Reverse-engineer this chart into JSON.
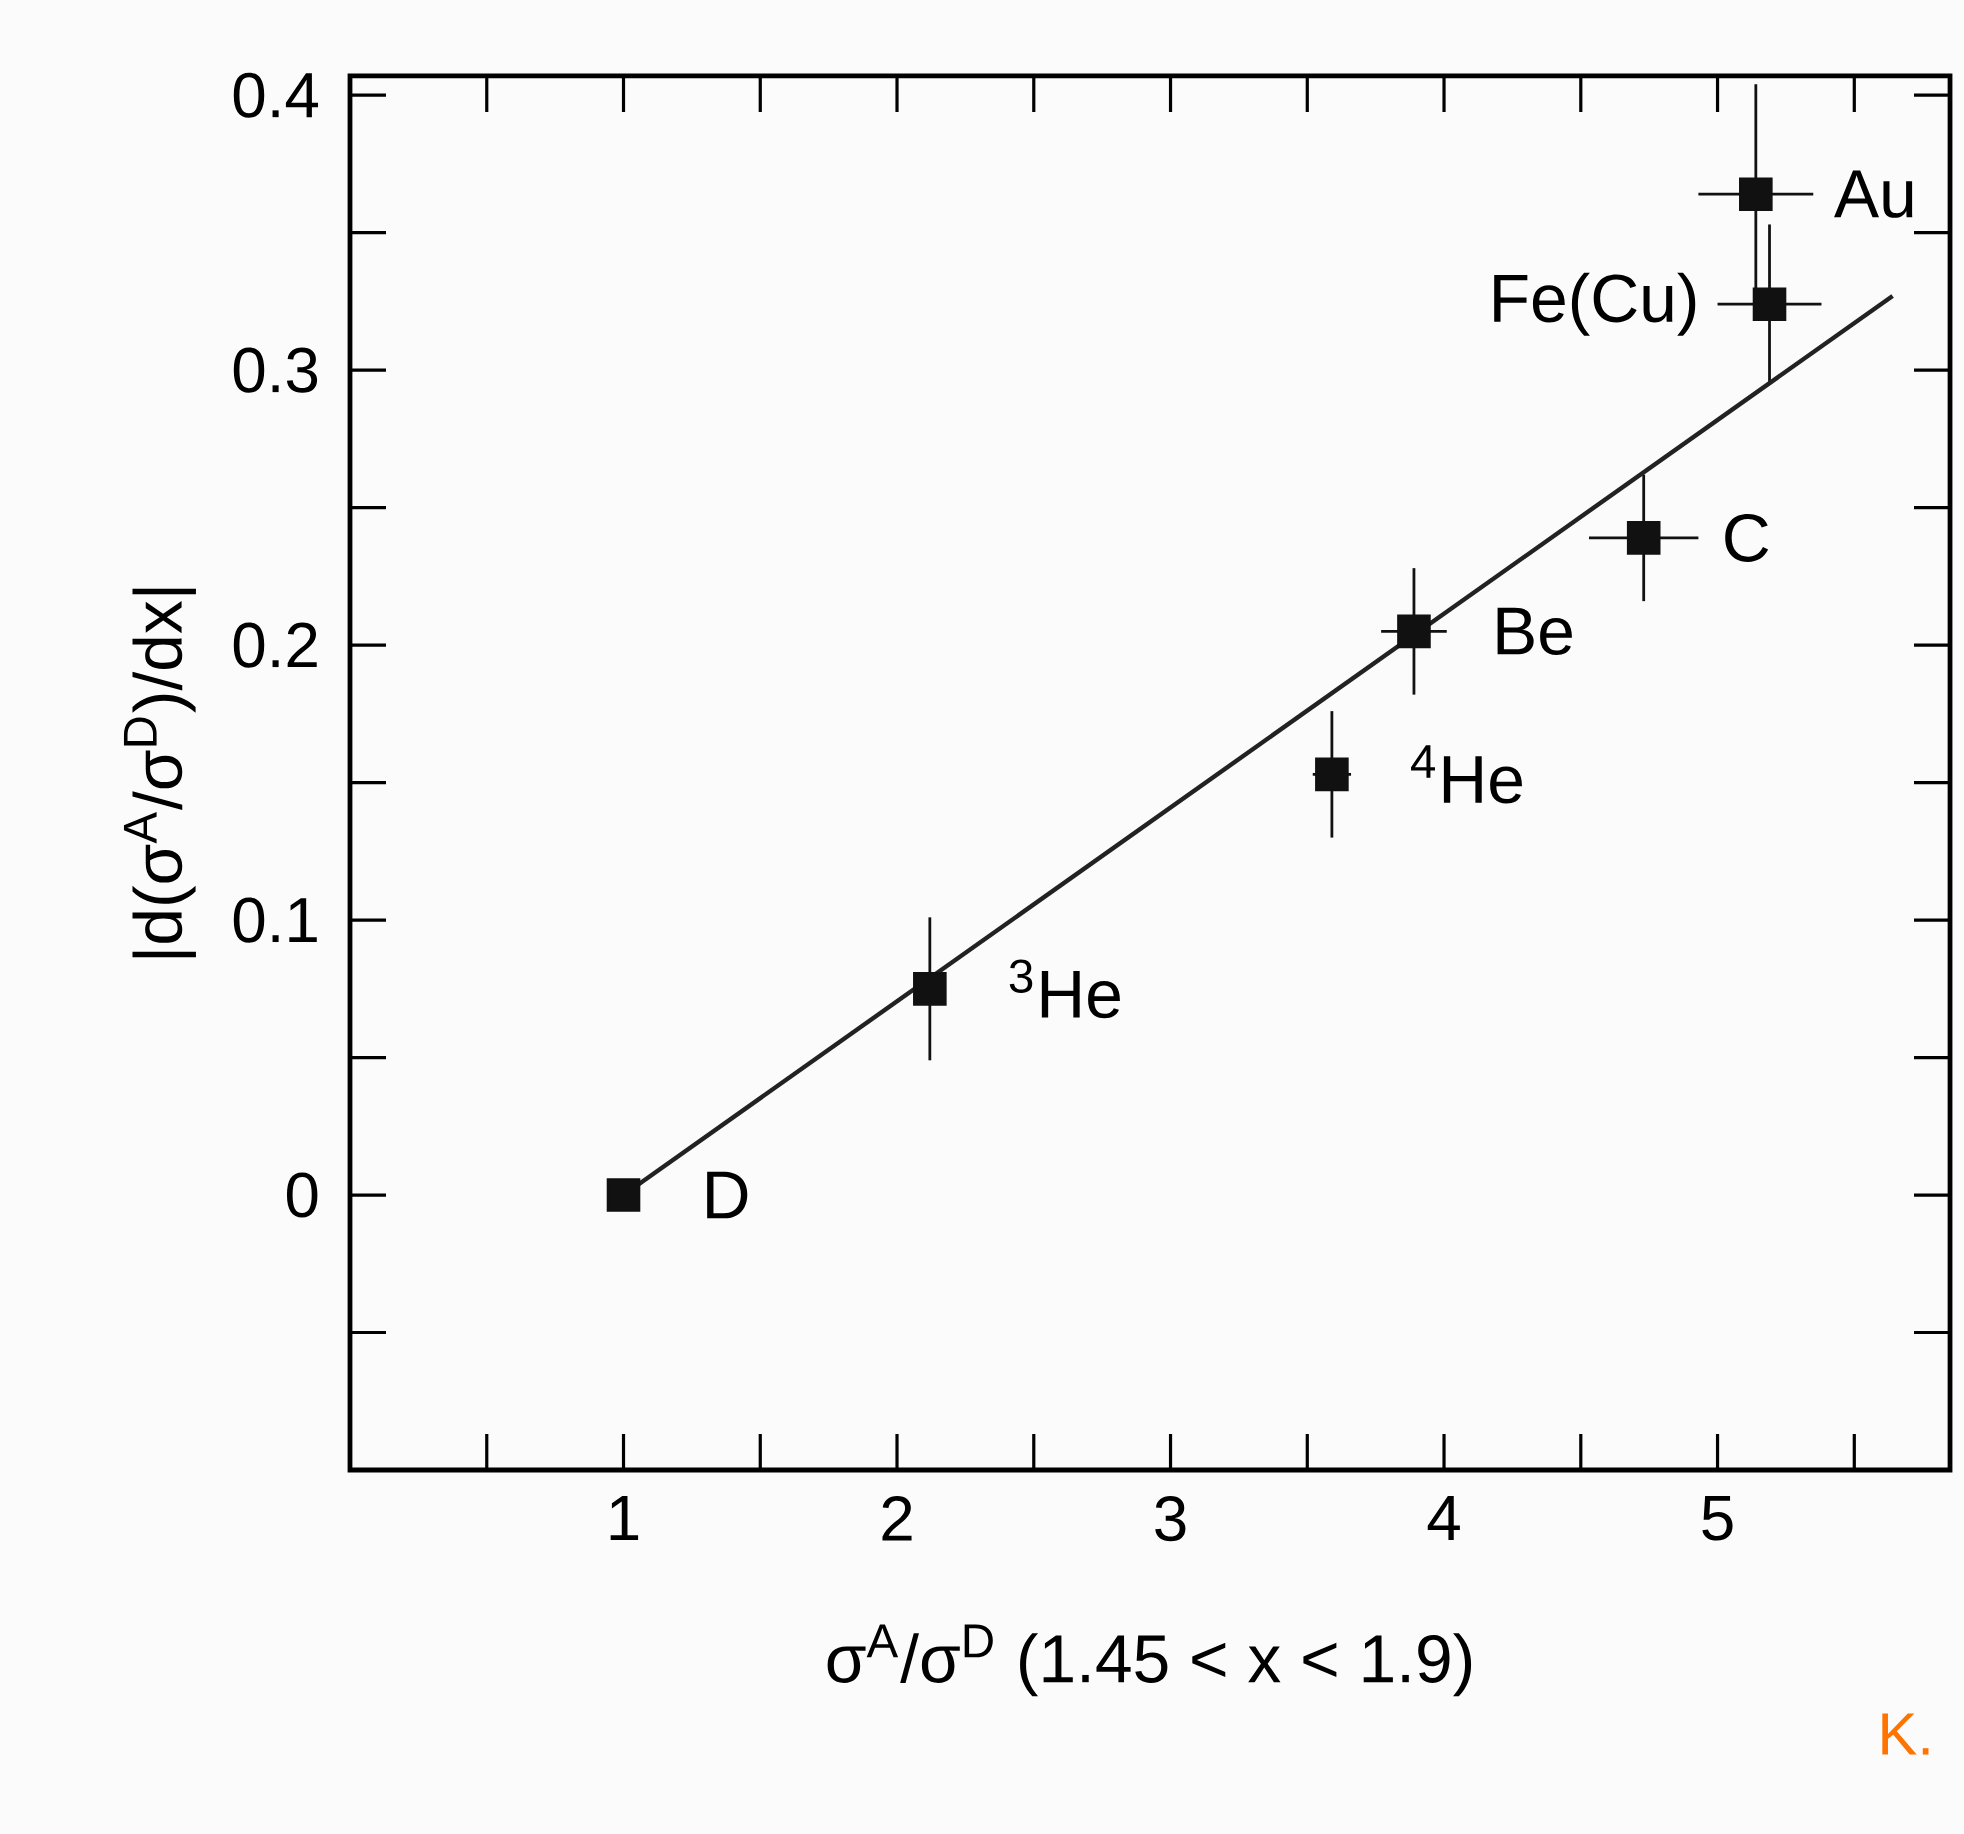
{
  "chart_data": {
    "type": "scatter",
    "xlabel": "σ$^{A}$/σ$^{D}$ (1.45 < x < 1.9)",
    "ylabel": "|d(σ$^{A}$/σ$^{D}$)/dx|",
    "xlim": [
      0,
      5.85
    ],
    "ylim": [
      -0.1,
      0.407
    ],
    "xticks": [
      1,
      2,
      3,
      4,
      5
    ],
    "yticks": [
      0,
      0.1,
      0.2,
      0.3,
      0.4
    ],
    "marker": "square",
    "series": [
      {
        "type": "scatter",
        "color": "#111111",
        "x": [
          1,
          2.12,
          3.59,
          3.89,
          4.73,
          5.19,
          5.14
        ],
        "values": [
          0,
          0.075,
          0.153,
          0.205,
          0.239,
          0.324,
          0.364
        ],
        "errors": [
          null,
          0.026,
          0.023,
          0.023,
          0.023,
          0.029,
          0.04
        ],
        "xerrors": [
          null,
          null,
          0.07,
          0.12,
          0.2,
          0.19,
          0.21
        ]
      },
      {
        "type": "line",
        "color": "#222222",
        "x": [
          1,
          5.64
        ],
        "values": [
          0,
          0.327
        ],
        "line_style": "solid",
        "marker": "none"
      }
    ],
    "annotations": [
      {
        "text": "D",
        "x": 1,
        "y": 0
      },
      {
        "text": "$^{3}$He",
        "x": 2.12,
        "y": 0.075
      },
      {
        "text": "$^{4}$He",
        "x": 3.59,
        "y": 0.153
      },
      {
        "text": "Be",
        "x": 3.89,
        "y": 0.205
      },
      {
        "text": "C",
        "x": 4.73,
        "y": 0.239
      },
      {
        "text": "Fe(Cu)",
        "x": 5.19,
        "y": 0.324
      },
      {
        "text": "Au",
        "x": 5.14,
        "y": 0.364
      },
      "K."
    ]
  }
}
